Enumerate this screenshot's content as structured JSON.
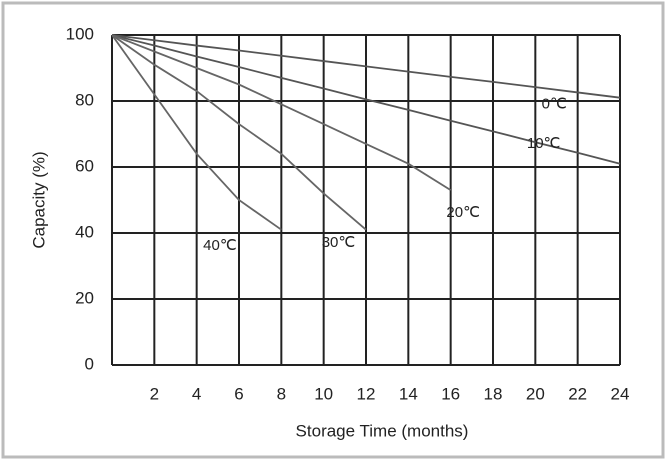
{
  "chart_data": {
    "type": "line",
    "x_label": "Storage Time (months)",
    "y_label": "Capacity  (%)",
    "x": [
      0,
      2,
      4,
      6,
      8,
      10,
      12,
      14,
      16,
      18,
      20,
      22,
      24
    ],
    "series": [
      {
        "name": "0℃",
        "color": "#555555",
        "values": [
          100,
          98.4,
          96.8,
          95.3,
          93.7,
          92.1,
          90.5,
          88.9,
          87.3,
          85.8,
          84.2,
          82.6,
          81
        ]
      },
      {
        "name": "10℃",
        "color": "#555555",
        "values": [
          100,
          96.8,
          93.5,
          90.3,
          87,
          83.8,
          80.5,
          77.3,
          74,
          70.8,
          67.5,
          64.3,
          61
        ]
      },
      {
        "name": "20℃",
        "color": "#666666",
        "values": [
          100,
          95,
          90,
          85,
          79,
          73,
          67,
          61,
          53,
          null,
          null,
          null,
          null
        ]
      },
      {
        "name": "30℃",
        "color": "#666666",
        "values": [
          100,
          91,
          83,
          73,
          64,
          52,
          41,
          null,
          null,
          null,
          null,
          null,
          null
        ]
      },
      {
        "name": "40℃",
        "color": "#666666",
        "values": [
          100,
          82,
          64,
          50,
          41,
          null,
          null,
          null,
          null,
          null,
          null,
          null,
          null
        ]
      }
    ],
    "xlim": [
      0,
      24
    ],
    "xticks": [
      2,
      4,
      6,
      8,
      10,
      12,
      14,
      16,
      18,
      20,
      22,
      24
    ],
    "ylim": [
      0,
      100
    ],
    "yticks": [
      0,
      20,
      40,
      60,
      80,
      100
    ],
    "grid": true
  }
}
